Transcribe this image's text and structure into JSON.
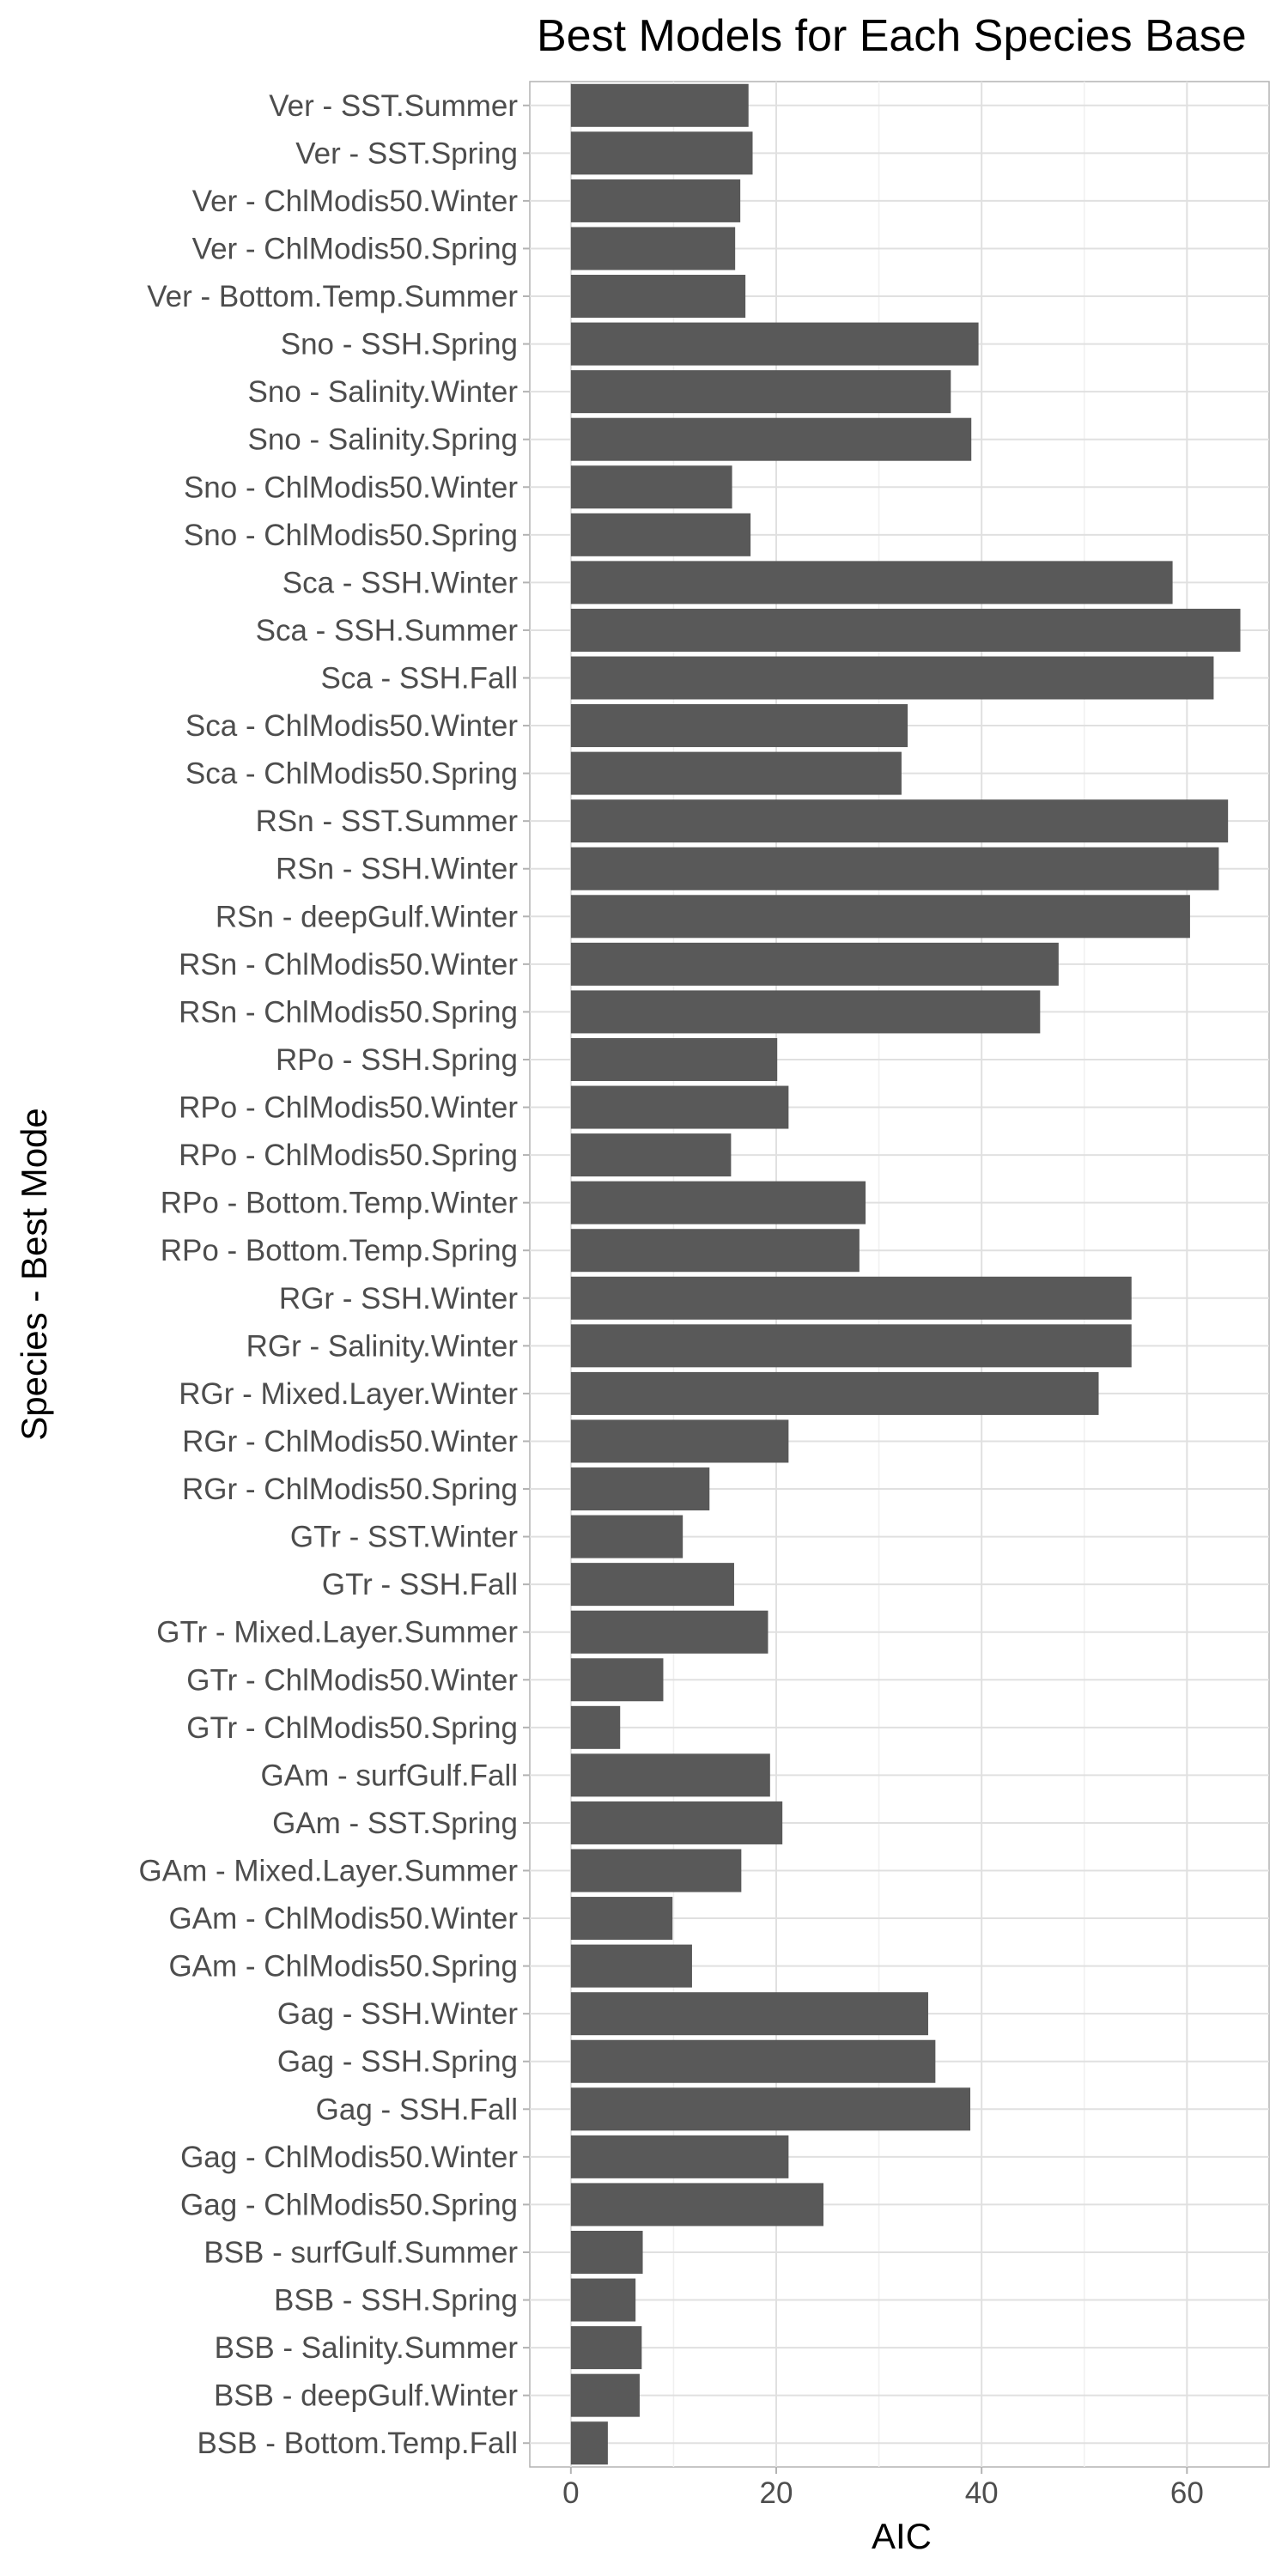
{
  "chart_data": {
    "type": "bar",
    "orientation": "horizontal",
    "title": "Best Models for Each Species Base",
    "xlabel": "AIC",
    "ylabel": "Species - Best Mode",
    "xlim": [
      -4,
      68
    ],
    "xticks": [
      0,
      20,
      40,
      60
    ],
    "grid": true,
    "bar_color": "#595959",
    "categories": [
      "BSB - Bottom.Temp.Fall",
      "BSB - deepGulf.Winter",
      "BSB - Salinity.Summer",
      "BSB - SSH.Spring",
      "BSB - surfGulf.Summer",
      "Gag - ChlModis50.Spring",
      "Gag - ChlModis50.Winter",
      "Gag - SSH.Fall",
      "Gag - SSH.Spring",
      "Gag - SSH.Winter",
      "GAm - ChlModis50.Spring",
      "GAm - ChlModis50.Winter",
      "GAm - Mixed.Layer.Summer",
      "GAm - SST.Spring",
      "GAm - surfGulf.Fall",
      "GTr - ChlModis50.Spring",
      "GTr - ChlModis50.Winter",
      "GTr - Mixed.Layer.Summer",
      "GTr - SSH.Fall",
      "GTr - SST.Winter",
      "RGr - ChlModis50.Spring",
      "RGr - ChlModis50.Winter",
      "RGr - Mixed.Layer.Winter",
      "RGr - Salinity.Winter",
      "RGr - SSH.Winter",
      "RPo - Bottom.Temp.Spring",
      "RPo - Bottom.Temp.Winter",
      "RPo - ChlModis50.Spring",
      "RPo - ChlModis50.Winter",
      "RPo - SSH.Spring",
      "RSn - ChlModis50.Spring",
      "RSn - ChlModis50.Winter",
      "RSn - deepGulf.Winter",
      "RSn - SSH.Winter",
      "RSn - SST.Summer",
      "Sca - ChlModis50.Spring",
      "Sca - ChlModis50.Winter",
      "Sca - SSH.Fall",
      "Sca - SSH.Summer",
      "Sca - SSH.Winter",
      "Sno - ChlModis50.Spring",
      "Sno - ChlModis50.Winter",
      "Sno - Salinity.Spring",
      "Sno - Salinity.Winter",
      "Sno - SSH.Spring",
      "Ver - Bottom.Temp.Summer",
      "Ver - ChlModis50.Spring",
      "Ver - ChlModis50.Winter",
      "Ver - SST.Spring",
      "Ver - SST.Summer"
    ],
    "values": [
      3.6,
      6.7,
      6.9,
      6.3,
      7.0,
      24.6,
      21.2,
      38.9,
      35.5,
      34.8,
      11.8,
      9.9,
      16.6,
      20.6,
      19.4,
      4.8,
      9.0,
      19.2,
      15.9,
      10.9,
      13.5,
      21.2,
      51.4,
      54.6,
      54.6,
      28.1,
      28.7,
      15.6,
      21.2,
      20.1,
      45.7,
      47.5,
      60.3,
      63.1,
      64.0,
      32.2,
      32.8,
      62.6,
      65.2,
      58.6,
      17.5,
      15.7,
      39.0,
      37.0,
      39.7,
      17.0,
      16.0,
      16.5,
      17.7,
      17.3
    ]
  }
}
